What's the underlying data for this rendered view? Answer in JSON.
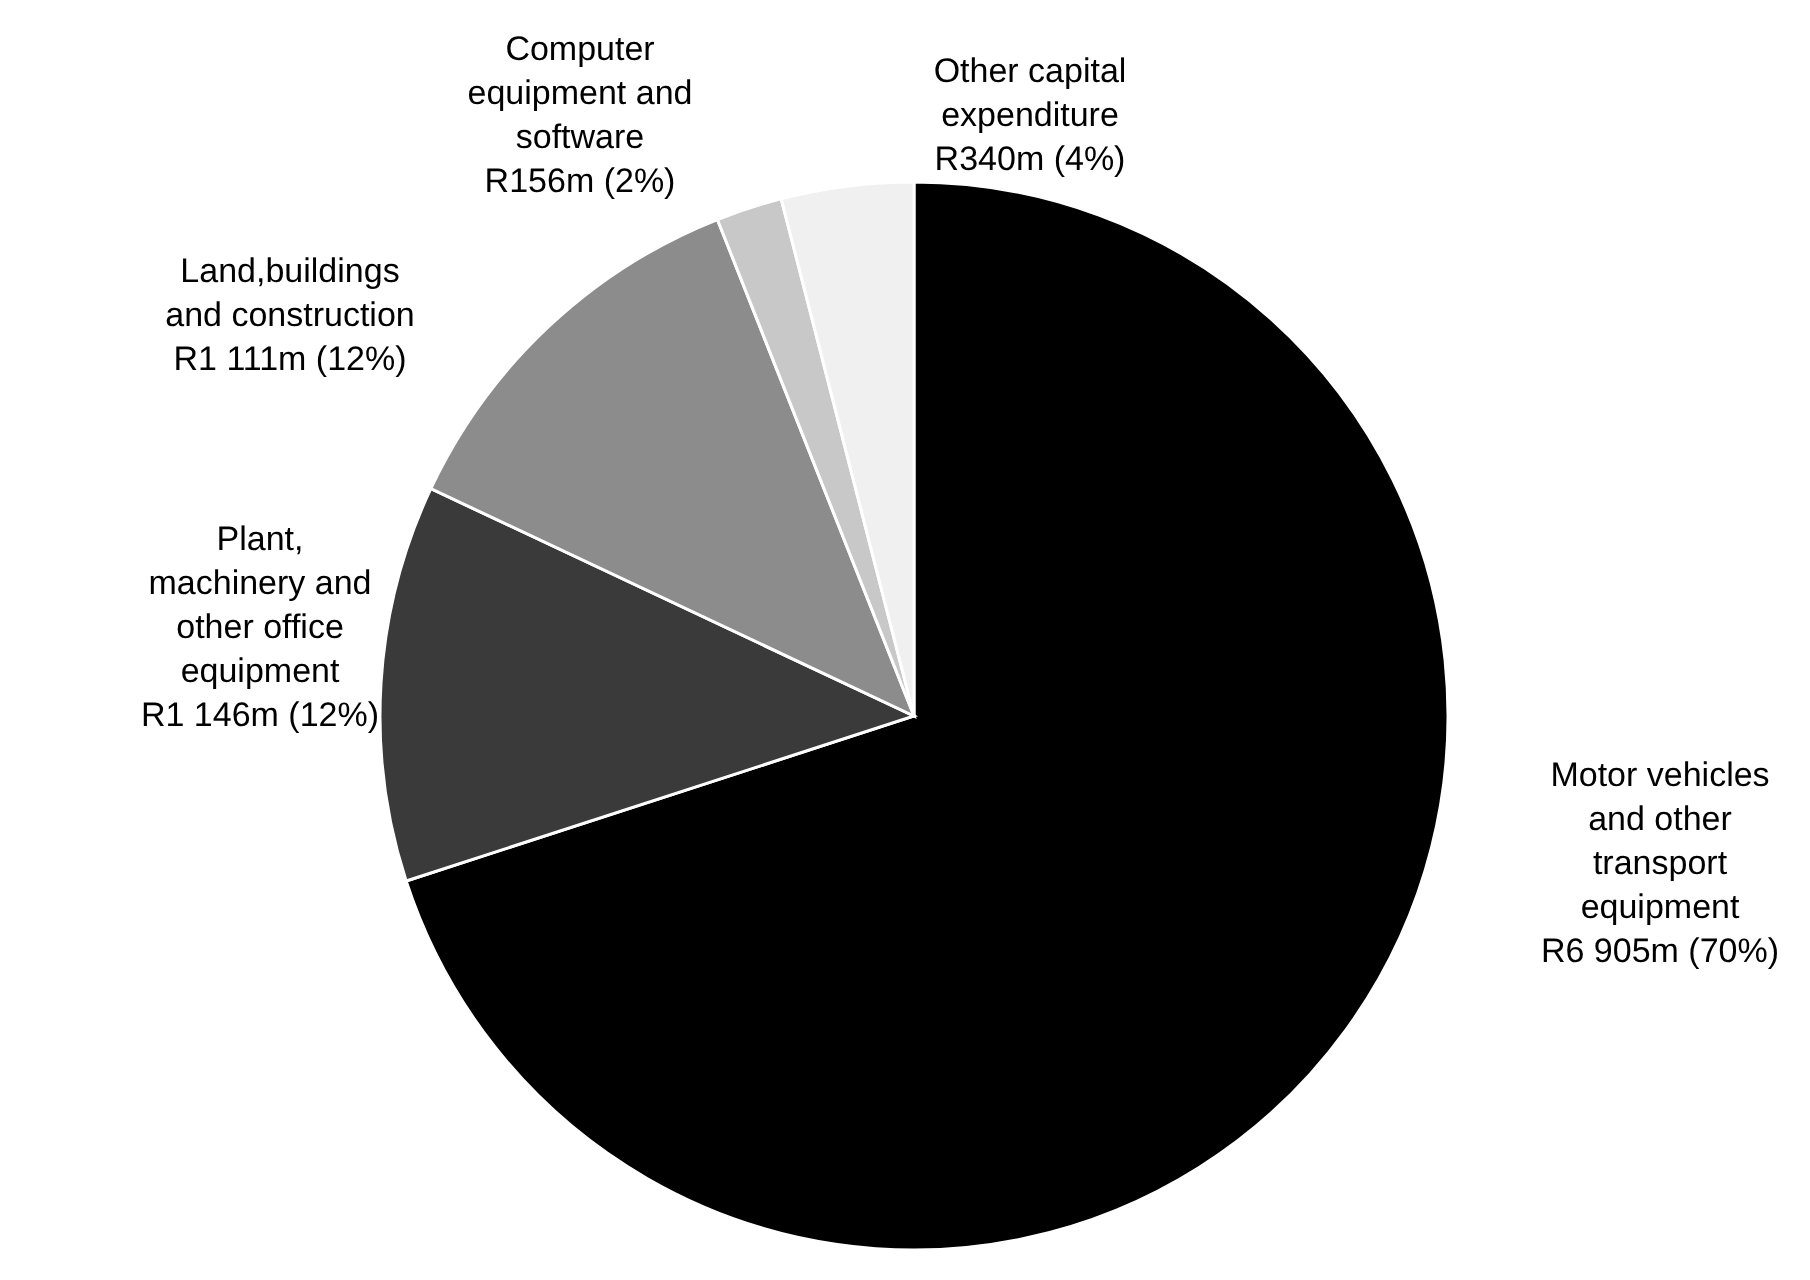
{
  "chart_data": {
    "type": "pie",
    "categories": [
      "Motor vehicles and other transport equipment",
      "Plant, machinery and other office equipment",
      "Land,buildings and construction",
      "Computer equipment and software",
      "Other capital expenditure"
    ],
    "values": [
      70,
      12,
      12,
      2,
      4
    ],
    "value_labels": [
      "R6 905m (70%)",
      "R1 146m (12%)",
      "R1 111m (12%)",
      "R156m (2%)",
      "R340m (4%)"
    ],
    "colors": [
      "#000000",
      "#3a3a3a",
      "#8c8c8c",
      "#c8c8c8",
      "#f0f0f0"
    ]
  }
}
